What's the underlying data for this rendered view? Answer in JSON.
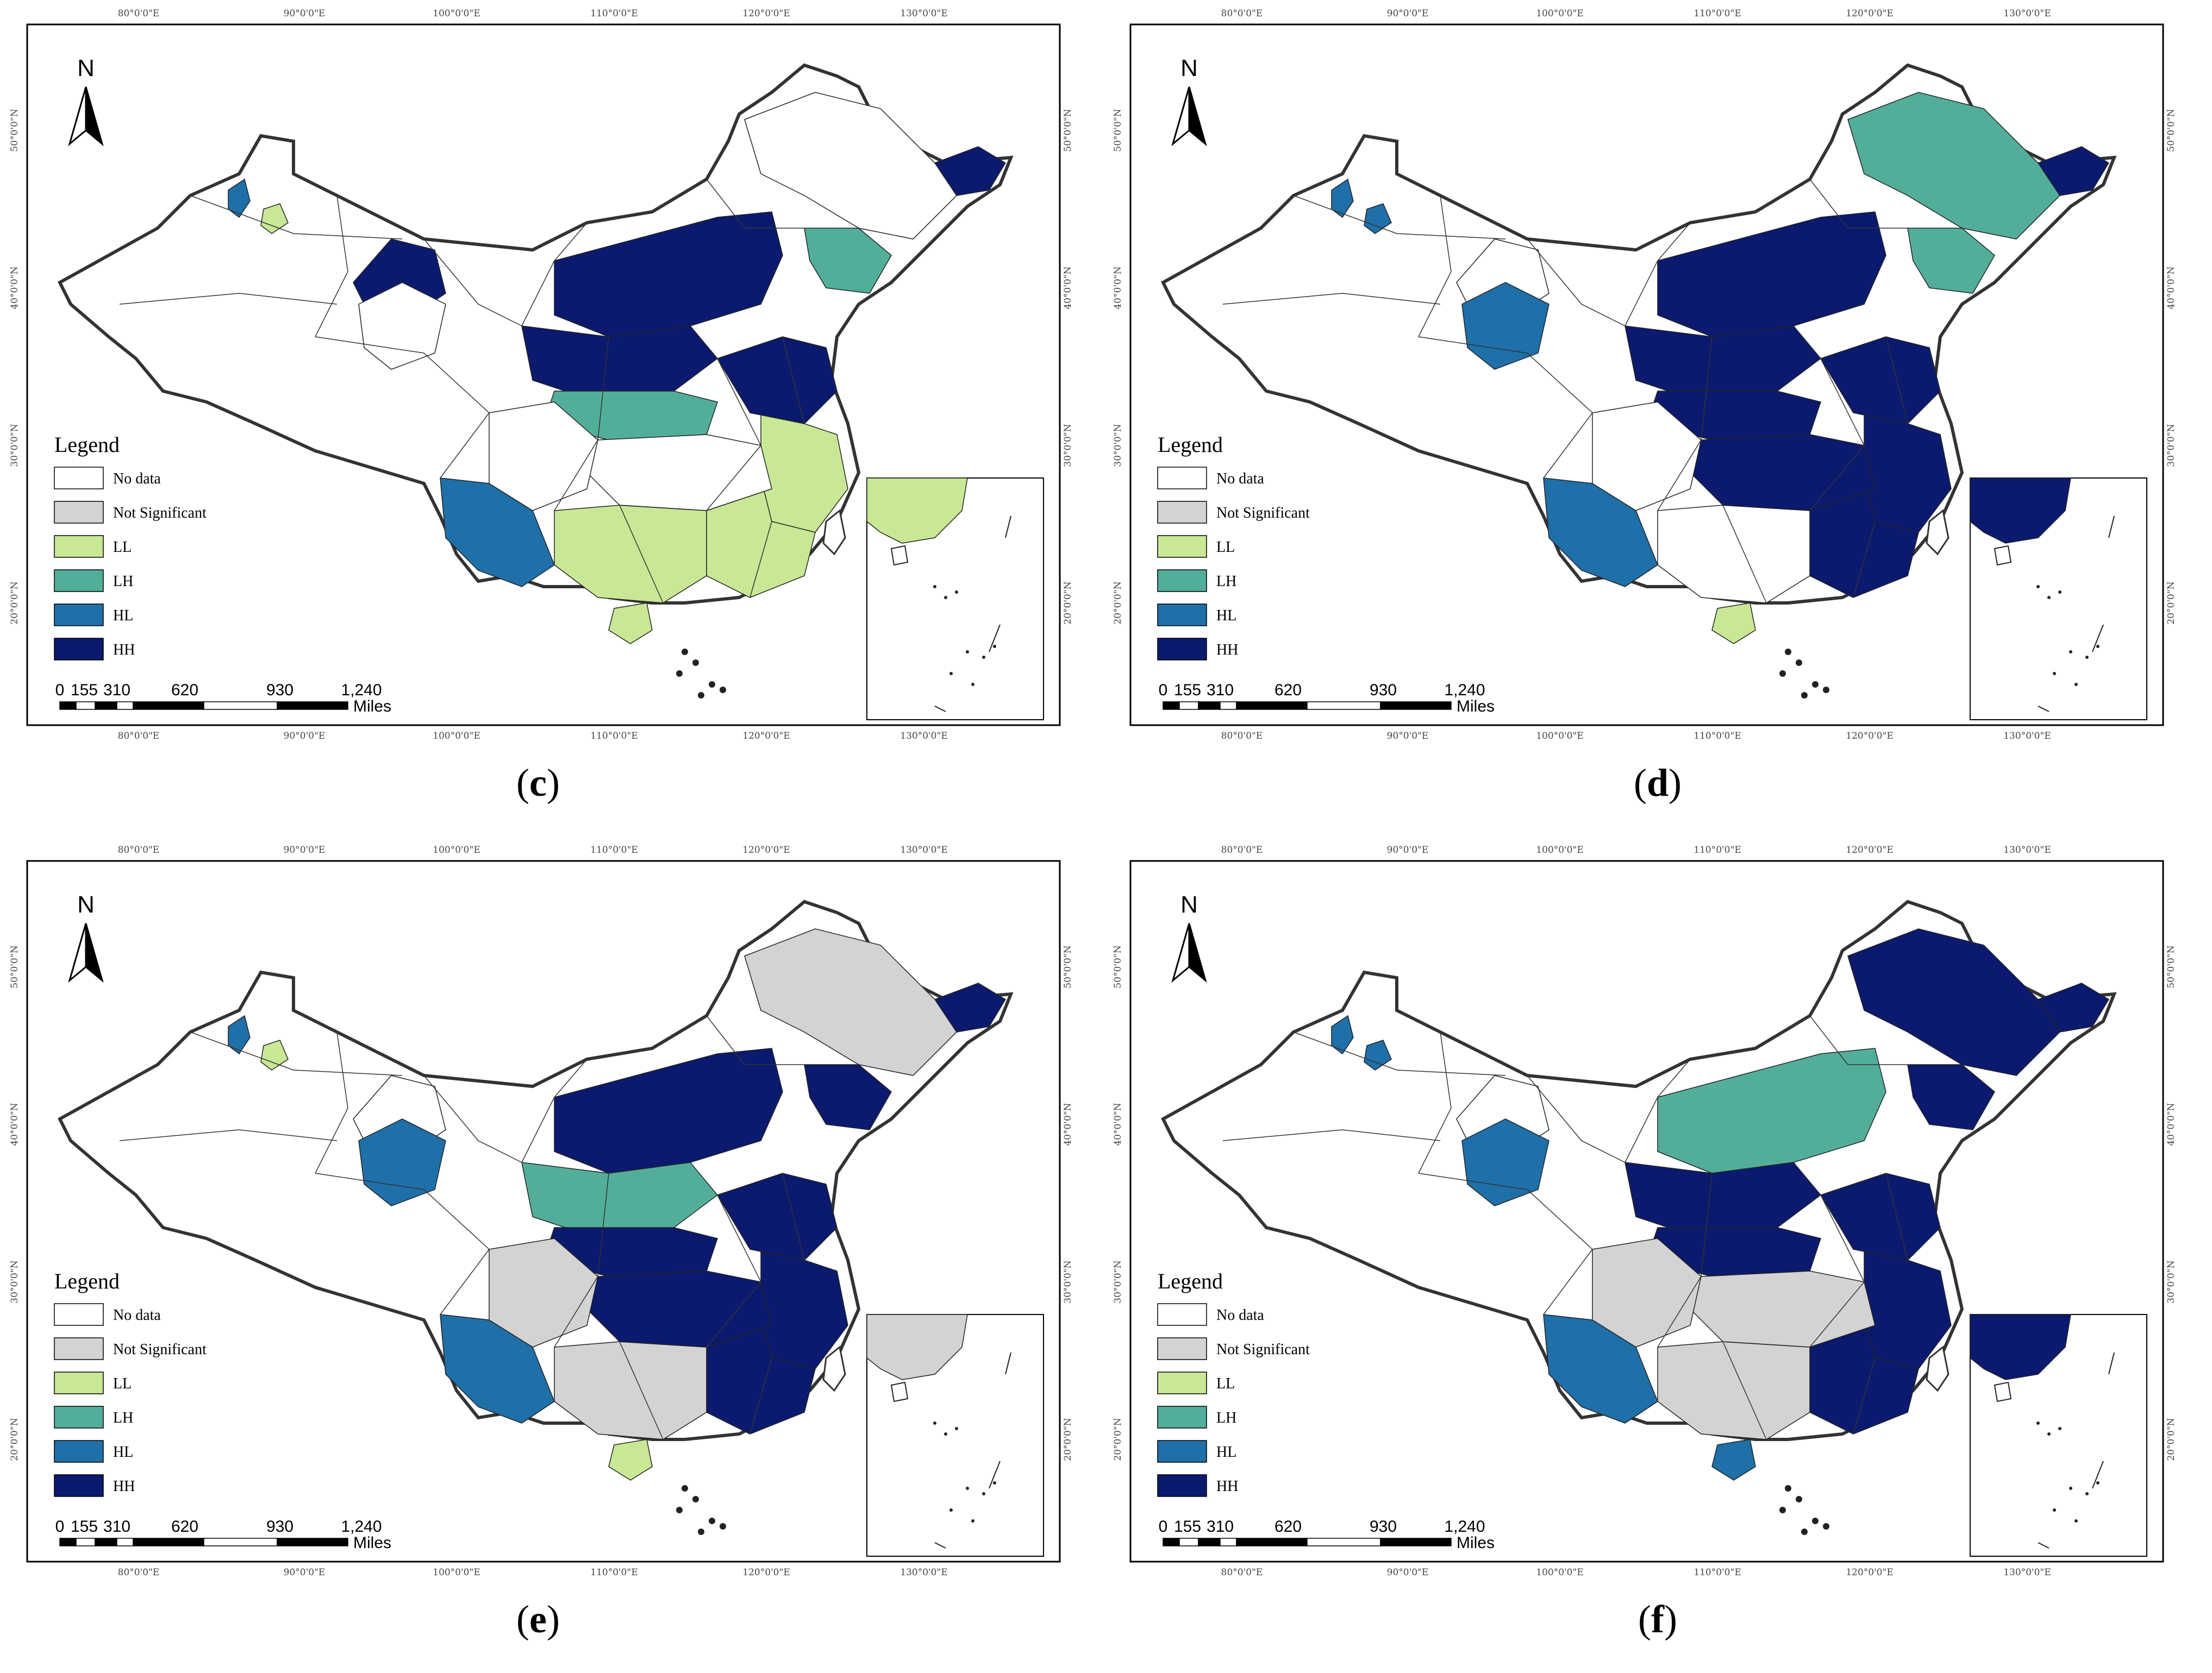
{
  "legend": {
    "title": "Legend",
    "classes": [
      {
        "key": "nodata",
        "label": "No data",
        "color": "#ffffff"
      },
      {
        "key": "ns",
        "label": "Not Significant",
        "color": "#d3d3d3"
      },
      {
        "key": "LL",
        "label": "LL",
        "color": "#c8e895"
      },
      {
        "key": "LH",
        "label": "LH",
        "color": "#52ae9a"
      },
      {
        "key": "HL",
        "label": "HL",
        "color": "#1f6fa8"
      },
      {
        "key": "HH",
        "label": "HH",
        "color": "#0b1a6e"
      }
    ]
  },
  "north_arrow": "N",
  "scale_bar": {
    "ticks": [
      "0",
      "155",
      "310",
      "620",
      "930",
      "1,240"
    ],
    "unit": "Miles"
  },
  "graticule": {
    "longitudes": [
      "80°0'0\"E",
      "90°0'0\"E",
      "100°0'0\"E",
      "110°0'0\"E",
      "120°0'0\"E",
      "130°0'0\"E"
    ],
    "latitudes": [
      "50°0'0\"N",
      "40°0'0\"N",
      "30°0'0\"N",
      "20°0'0\"N"
    ]
  },
  "panels": [
    {
      "id": "c",
      "caption": "c",
      "north_icon": "north-arrow-icon",
      "regions": {
        "north": "HH",
        "northcenter": "HH",
        "northeast_far": "HH",
        "northwest": "HH",
        "northeast_belt": "LH",
        "centerband": "LH",
        "southeast": "LL",
        "south": "LL",
        "southwest": "HL",
        "hainan": "LL",
        "east_coast": "LL",
        "xinjiang_spot": "HL",
        "xinjiang_ll": "LL",
        "north_plain": "HH",
        "center": "nodata",
        "sichuan": "nodata",
        "northeast": "nodata",
        "gansu": "nodata",
        "inset": "LL"
      }
    },
    {
      "id": "d",
      "caption": "d",
      "north_icon": "north-arrow-icon",
      "regions": {
        "north": "HH",
        "northcenter": "HH",
        "northeast_far": "HH",
        "northwest": "nodata",
        "northeast_belt": "LH",
        "centerband": "HH",
        "southeast": "HH",
        "south": "nodata",
        "southwest": "HL",
        "hainan": "LL",
        "east_coast": "HH",
        "xinjiang_spot": "HL",
        "xinjiang_ll": "HL",
        "north_plain": "HH",
        "center": "HH",
        "sichuan": "nodata",
        "northeast": "LH",
        "gansu": "HL",
        "inset": "HH"
      }
    },
    {
      "id": "e",
      "caption": "e",
      "north_icon": "north-arrow-icon",
      "regions": {
        "north": "HH",
        "northcenter": "LH",
        "northeast_far": "HH",
        "northwest": "nodata",
        "northeast_belt": "HH",
        "centerband": "HH",
        "southeast": "HH",
        "south": "ns",
        "southwest": "HL",
        "hainan": "LL",
        "east_coast": "HH",
        "xinjiang_spot": "HL",
        "xinjiang_ll": "LL",
        "north_plain": "HH",
        "center": "HH",
        "sichuan": "ns",
        "northeast": "ns",
        "gansu": "HL",
        "inset": "ns"
      }
    },
    {
      "id": "f",
      "caption": "f",
      "north_icon": "north-arrow-icon",
      "regions": {
        "north": "LH",
        "northcenter": "HH",
        "northeast_far": "HH",
        "northwest": "nodata",
        "northeast_belt": "HH",
        "centerband": "HH",
        "southeast": "HH",
        "south": "ns",
        "southwest": "HL",
        "hainan": "HL",
        "east_coast": "HH",
        "xinjiang_spot": "HL",
        "xinjiang_ll": "HL",
        "north_plain": "HH",
        "center": "ns",
        "sichuan": "ns",
        "northeast": "HH",
        "gansu": "HL",
        "inset": "HH"
      }
    }
  ]
}
